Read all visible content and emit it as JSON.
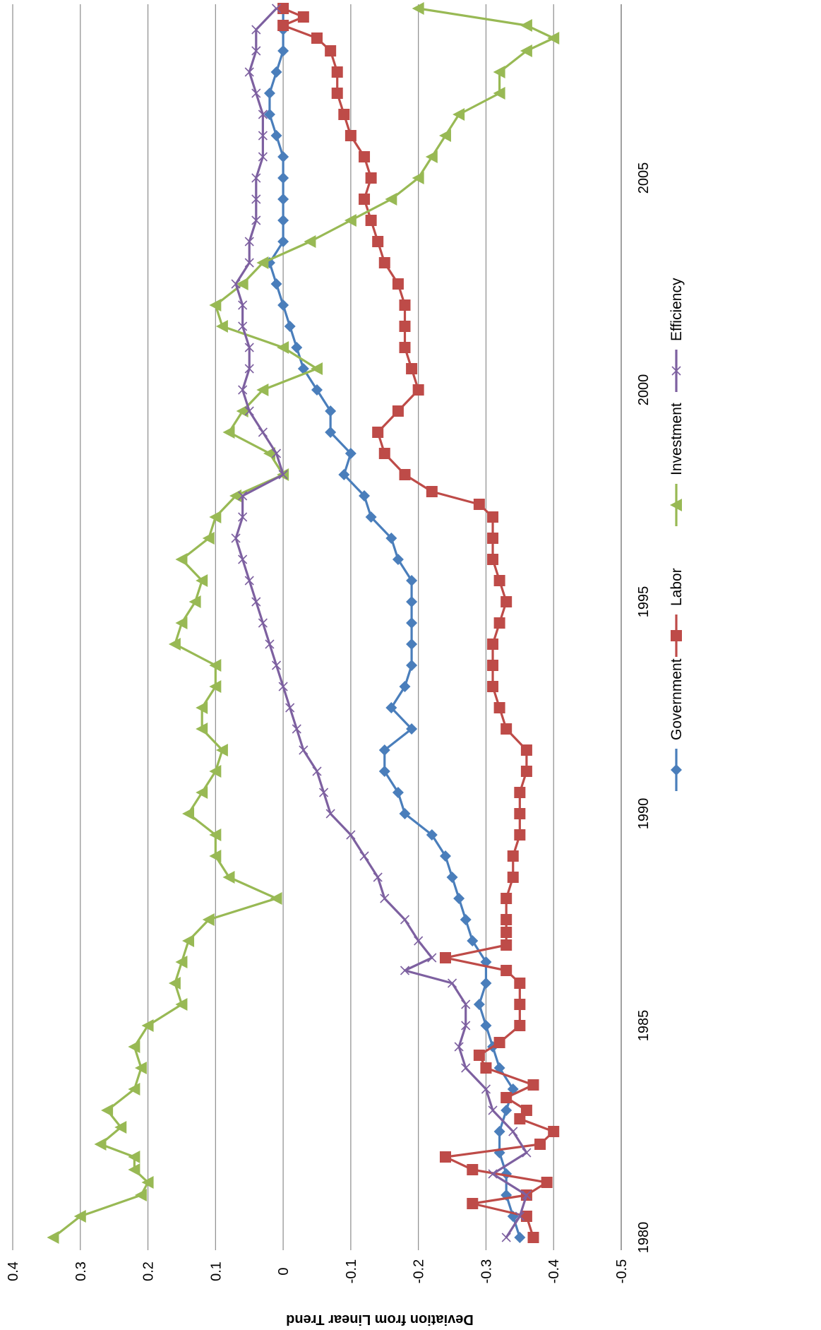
{
  "chart_data": {
    "type": "line",
    "title": "",
    "xlabel": "",
    "ylabel": "Deviation from Linear Trend",
    "ylim": [
      -0.5,
      0.4
    ],
    "yticks": [
      0.4,
      0.3,
      0.2,
      0.1,
      0,
      -0.1,
      -0.2,
      -0.3,
      -0.4,
      -0.5
    ],
    "ytick_labels": [
      "0.4",
      "0.3",
      "0.2",
      "0.1",
      "0",
      "-0.1",
      "-0.2",
      "-0.3",
      "-0.4",
      "-0.5"
    ],
    "xlim": [
      1979.7,
      2009.1
    ],
    "xticks": [
      1980,
      1985,
      1990,
      1995,
      2000,
      2005
    ],
    "xtick_labels": [
      "1980",
      "1985",
      "1990",
      "1995",
      "2000",
      "2005"
    ],
    "grid": true,
    "orientation": "rotated-90-clockwise",
    "legend_position": "right",
    "series": [
      {
        "name": "Government",
        "color": "#4a7ebb",
        "marker": "diamond",
        "points": [
          [
            1980.0,
            -0.35
          ],
          [
            1980.5,
            -0.34
          ],
          [
            1981.0,
            -0.33
          ],
          [
            1981.5,
            -0.33
          ],
          [
            1982.0,
            -0.32
          ],
          [
            1982.5,
            -0.32
          ],
          [
            1983.0,
            -0.33
          ],
          [
            1983.5,
            -0.34
          ],
          [
            1984.0,
            -0.32
          ],
          [
            1984.5,
            -0.31
          ],
          [
            1985.0,
            -0.3
          ],
          [
            1985.5,
            -0.29
          ],
          [
            1986.0,
            -0.3
          ],
          [
            1986.5,
            -0.3
          ],
          [
            1987.0,
            -0.28
          ],
          [
            1987.5,
            -0.27
          ],
          [
            1988.0,
            -0.26
          ],
          [
            1988.5,
            -0.25
          ],
          [
            1989.0,
            -0.24
          ],
          [
            1989.5,
            -0.22
          ],
          [
            1990.0,
            -0.18
          ],
          [
            1990.5,
            -0.17
          ],
          [
            1991.0,
            -0.15
          ],
          [
            1991.5,
            -0.15
          ],
          [
            1992.0,
            -0.19
          ],
          [
            1992.5,
            -0.16
          ],
          [
            1993.0,
            -0.18
          ],
          [
            1993.5,
            -0.19
          ],
          [
            1994.0,
            -0.19
          ],
          [
            1994.5,
            -0.19
          ],
          [
            1995.0,
            -0.19
          ],
          [
            1995.5,
            -0.19
          ],
          [
            1996.0,
            -0.17
          ],
          [
            1996.5,
            -0.16
          ],
          [
            1997.0,
            -0.13
          ],
          [
            1997.5,
            -0.12
          ],
          [
            1998.0,
            -0.09
          ],
          [
            1998.5,
            -0.1
          ],
          [
            1999.0,
            -0.07
          ],
          [
            1999.5,
            -0.07
          ],
          [
            2000.0,
            -0.05
          ],
          [
            2000.5,
            -0.03
          ],
          [
            2001.0,
            -0.02
          ],
          [
            2001.5,
            -0.01
          ],
          [
            2002.0,
            0.0
          ],
          [
            2002.5,
            0.01
          ],
          [
            2003.0,
            0.02
          ],
          [
            2003.5,
            0.0
          ],
          [
            2004.0,
            0.0
          ],
          [
            2004.5,
            0.0
          ],
          [
            2005.0,
            0.0
          ],
          [
            2005.5,
            0.0
          ],
          [
            2006.0,
            0.01
          ],
          [
            2006.5,
            0.02
          ],
          [
            2007.0,
            0.02
          ],
          [
            2007.5,
            0.01
          ],
          [
            2008.0,
            0.0
          ],
          [
            2008.5,
            0.0
          ],
          [
            2009.0,
            0.0
          ]
        ]
      },
      {
        "name": "Labor",
        "color": "#be4b48",
        "marker": "square",
        "points": [
          [
            1980.0,
            -0.37
          ],
          [
            1980.5,
            -0.36
          ],
          [
            1980.8,
            -0.28
          ],
          [
            1981.0,
            -0.36
          ],
          [
            1981.3,
            -0.39
          ],
          [
            1981.6,
            -0.28
          ],
          [
            1981.9,
            -0.24
          ],
          [
            1982.2,
            -0.38
          ],
          [
            1982.5,
            -0.4
          ],
          [
            1982.8,
            -0.35
          ],
          [
            1983.0,
            -0.36
          ],
          [
            1983.3,
            -0.33
          ],
          [
            1983.6,
            -0.37
          ],
          [
            1984.0,
            -0.3
          ],
          [
            1984.3,
            -0.29
          ],
          [
            1984.6,
            -0.32
          ],
          [
            1985.0,
            -0.35
          ],
          [
            1985.5,
            -0.35
          ],
          [
            1986.0,
            -0.35
          ],
          [
            1986.3,
            -0.33
          ],
          [
            1986.6,
            -0.24
          ],
          [
            1986.9,
            -0.33
          ],
          [
            1987.2,
            -0.33
          ],
          [
            1987.5,
            -0.33
          ],
          [
            1988.0,
            -0.33
          ],
          [
            1988.5,
            -0.34
          ],
          [
            1989.0,
            -0.34
          ],
          [
            1989.5,
            -0.35
          ],
          [
            1990.0,
            -0.35
          ],
          [
            1990.5,
            -0.35
          ],
          [
            1991.0,
            -0.36
          ],
          [
            1991.5,
            -0.36
          ],
          [
            1992.0,
            -0.33
          ],
          [
            1992.5,
            -0.32
          ],
          [
            1993.0,
            -0.31
          ],
          [
            1993.5,
            -0.31
          ],
          [
            1994.0,
            -0.31
          ],
          [
            1994.5,
            -0.32
          ],
          [
            1995.0,
            -0.33
          ],
          [
            1995.5,
            -0.32
          ],
          [
            1996.0,
            -0.31
          ],
          [
            1996.5,
            -0.31
          ],
          [
            1997.0,
            -0.31
          ],
          [
            1997.3,
            -0.29
          ],
          [
            1997.6,
            -0.22
          ],
          [
            1998.0,
            -0.18
          ],
          [
            1998.5,
            -0.15
          ],
          [
            1999.0,
            -0.14
          ],
          [
            1999.5,
            -0.17
          ],
          [
            2000.0,
            -0.2
          ],
          [
            2000.5,
            -0.19
          ],
          [
            2001.0,
            -0.18
          ],
          [
            2001.5,
            -0.18
          ],
          [
            2002.0,
            -0.18
          ],
          [
            2002.5,
            -0.17
          ],
          [
            2003.0,
            -0.15
          ],
          [
            2003.5,
            -0.14
          ],
          [
            2004.0,
            -0.13
          ],
          [
            2004.5,
            -0.12
          ],
          [
            2005.0,
            -0.13
          ],
          [
            2005.5,
            -0.12
          ],
          [
            2006.0,
            -0.1
          ],
          [
            2006.5,
            -0.09
          ],
          [
            2007.0,
            -0.08
          ],
          [
            2007.5,
            -0.08
          ],
          [
            2008.0,
            -0.07
          ],
          [
            2008.3,
            -0.05
          ],
          [
            2008.6,
            0.0
          ],
          [
            2008.8,
            -0.03
          ],
          [
            2009.0,
            0.0
          ]
        ]
      },
      {
        "name": "Investment",
        "color": "#98b954",
        "marker": "triangle",
        "points": [
          [
            1980.0,
            0.34
          ],
          [
            1980.5,
            0.3
          ],
          [
            1981.0,
            0.21
          ],
          [
            1981.3,
            0.2
          ],
          [
            1981.6,
            0.22
          ],
          [
            1981.9,
            0.22
          ],
          [
            1982.2,
            0.27
          ],
          [
            1982.6,
            0.24
          ],
          [
            1983.0,
            0.26
          ],
          [
            1983.5,
            0.22
          ],
          [
            1984.0,
            0.21
          ],
          [
            1984.5,
            0.22
          ],
          [
            1985.0,
            0.2
          ],
          [
            1985.5,
            0.15
          ],
          [
            1986.0,
            0.16
          ],
          [
            1986.5,
            0.15
          ],
          [
            1987.0,
            0.14
          ],
          [
            1987.5,
            0.11
          ],
          [
            1988.0,
            0.01
          ],
          [
            1988.5,
            0.08
          ],
          [
            1989.0,
            0.1
          ],
          [
            1989.5,
            0.1
          ],
          [
            1990.0,
            0.14
          ],
          [
            1990.5,
            0.12
          ],
          [
            1991.0,
            0.1
          ],
          [
            1991.5,
            0.09
          ],
          [
            1992.0,
            0.12
          ],
          [
            1992.5,
            0.12
          ],
          [
            1993.0,
            0.1
          ],
          [
            1993.5,
            0.1
          ],
          [
            1994.0,
            0.16
          ],
          [
            1994.5,
            0.15
          ],
          [
            1995.0,
            0.13
          ],
          [
            1995.5,
            0.12
          ],
          [
            1996.0,
            0.15
          ],
          [
            1996.5,
            0.11
          ],
          [
            1997.0,
            0.1
          ],
          [
            1997.5,
            0.07
          ],
          [
            1998.0,
            0.0
          ],
          [
            1998.5,
            0.02
          ],
          [
            1999.0,
            0.08
          ],
          [
            1999.5,
            0.06
          ],
          [
            2000.0,
            0.03
          ],
          [
            2000.5,
            -0.05
          ],
          [
            2001.0,
            0.0
          ],
          [
            2001.5,
            0.09
          ],
          [
            2002.0,
            0.1
          ],
          [
            2002.5,
            0.06
          ],
          [
            2003.0,
            0.03
          ],
          [
            2003.5,
            -0.04
          ],
          [
            2004.0,
            -0.1
          ],
          [
            2004.5,
            -0.16
          ],
          [
            2005.0,
            -0.2
          ],
          [
            2005.5,
            -0.22
          ],
          [
            2006.0,
            -0.24
          ],
          [
            2006.5,
            -0.26
          ],
          [
            2007.0,
            -0.32
          ],
          [
            2007.5,
            -0.32
          ],
          [
            2008.0,
            -0.36
          ],
          [
            2008.3,
            -0.4
          ],
          [
            2008.6,
            -0.36
          ],
          [
            2009.0,
            -0.2
          ]
        ]
      },
      {
        "name": "Efficiency",
        "color": "#7d60a0",
        "marker": "x",
        "points": [
          [
            1980.0,
            -0.33
          ],
          [
            1980.5,
            -0.35
          ],
          [
            1981.0,
            -0.36
          ],
          [
            1981.5,
            -0.31
          ],
          [
            1982.0,
            -0.36
          ],
          [
            1982.5,
            -0.34
          ],
          [
            1983.0,
            -0.31
          ],
          [
            1983.5,
            -0.3
          ],
          [
            1984.0,
            -0.27
          ],
          [
            1984.5,
            -0.26
          ],
          [
            1985.0,
            -0.27
          ],
          [
            1985.5,
            -0.27
          ],
          [
            1986.0,
            -0.25
          ],
          [
            1986.3,
            -0.18
          ],
          [
            1986.6,
            -0.22
          ],
          [
            1987.0,
            -0.2
          ],
          [
            1987.5,
            -0.18
          ],
          [
            1988.0,
            -0.15
          ],
          [
            1988.5,
            -0.14
          ],
          [
            1989.0,
            -0.12
          ],
          [
            1989.5,
            -0.1
          ],
          [
            1990.0,
            -0.07
          ],
          [
            1990.5,
            -0.06
          ],
          [
            1991.0,
            -0.05
          ],
          [
            1991.5,
            -0.03
          ],
          [
            1992.0,
            -0.02
          ],
          [
            1992.5,
            -0.01
          ],
          [
            1993.0,
            0.0
          ],
          [
            1993.5,
            0.01
          ],
          [
            1994.0,
            0.02
          ],
          [
            1994.5,
            0.03
          ],
          [
            1995.0,
            0.04
          ],
          [
            1995.5,
            0.05
          ],
          [
            1996.0,
            0.06
          ],
          [
            1996.5,
            0.07
          ],
          [
            1997.0,
            0.06
          ],
          [
            1997.5,
            0.06
          ],
          [
            1998.0,
            0.0
          ],
          [
            1998.5,
            0.01
          ],
          [
            1999.0,
            0.03
          ],
          [
            1999.5,
            0.05
          ],
          [
            2000.0,
            0.06
          ],
          [
            2000.5,
            0.05
          ],
          [
            2001.0,
            0.05
          ],
          [
            2001.5,
            0.06
          ],
          [
            2002.0,
            0.06
          ],
          [
            2002.5,
            0.07
          ],
          [
            2003.0,
            0.05
          ],
          [
            2003.5,
            0.05
          ],
          [
            2004.0,
            0.04
          ],
          [
            2004.5,
            0.04
          ],
          [
            2005.0,
            0.04
          ],
          [
            2005.5,
            0.03
          ],
          [
            2006.0,
            0.03
          ],
          [
            2006.5,
            0.03
          ],
          [
            2007.0,
            0.04
          ],
          [
            2007.5,
            0.05
          ],
          [
            2008.0,
            0.04
          ],
          [
            2008.5,
            0.04
          ],
          [
            2009.0,
            0.01
          ]
        ]
      }
    ]
  }
}
